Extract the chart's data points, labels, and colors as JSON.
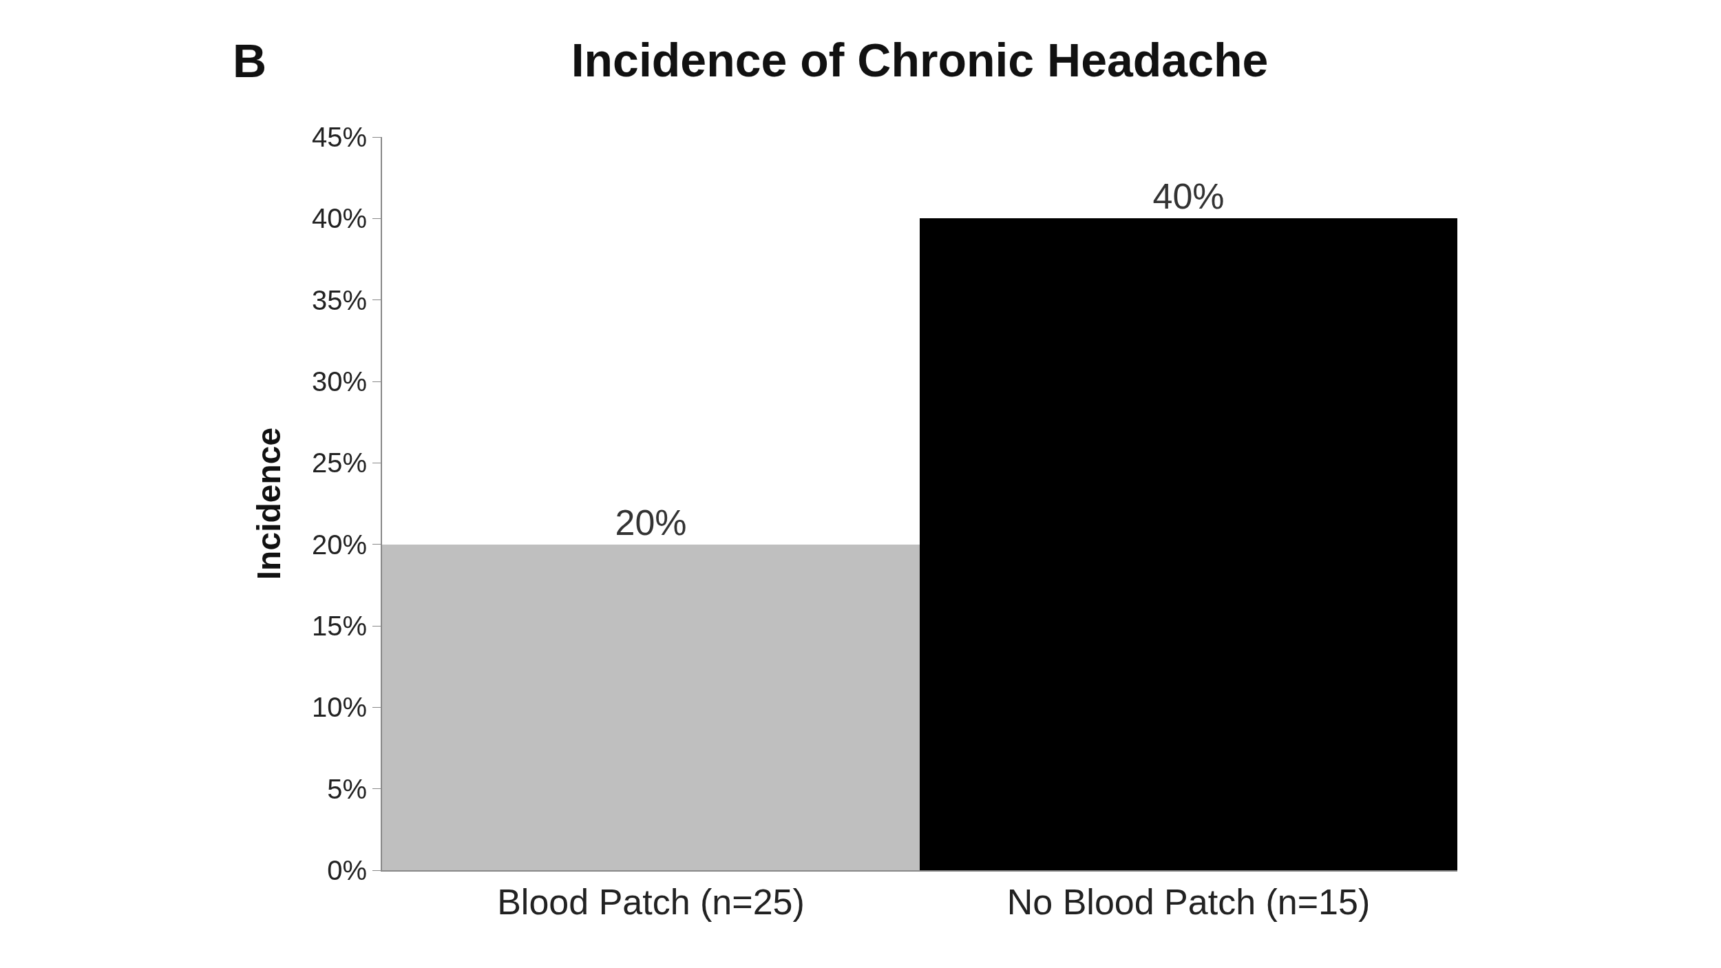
{
  "chart_data": {
    "type": "bar",
    "title": "Incidence of Chronic Headache",
    "ylabel": "Incidence",
    "annotations": [
      "B"
    ],
    "categories": [
      "Blood Patch (n=25)",
      "No Blood Patch (n=15)"
    ],
    "values": [
      20,
      40
    ],
    "colors": [
      "#bfbfbf",
      "#000000"
    ],
    "value_labels": [
      "20%",
      "40%"
    ],
    "ylim": [
      0,
      45
    ],
    "yticks": [
      {
        "value": 0,
        "label": "0%"
      },
      {
        "value": 5,
        "label": "5%"
      },
      {
        "value": 10,
        "label": "10%"
      },
      {
        "value": 15,
        "label": "15%"
      },
      {
        "value": 20,
        "label": "20%"
      },
      {
        "value": 25,
        "label": "25%"
      },
      {
        "value": 30,
        "label": "30%"
      },
      {
        "value": 35,
        "label": "35%"
      },
      {
        "value": 40,
        "label": "40%"
      },
      {
        "value": 45,
        "label": "45%"
      }
    ]
  }
}
